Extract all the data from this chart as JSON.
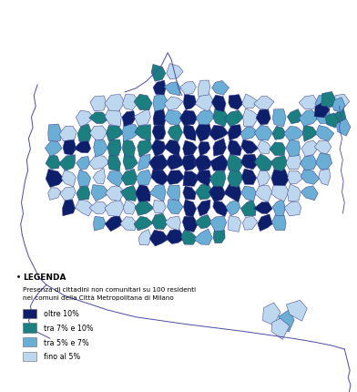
{
  "legend_title": "LEGENDA",
  "legend_subtitle": "Presenza di cittadini non comunitari su 100 residenti\nnei comuni della Città Metropolitana di Milano",
  "legend_items": [
    {
      "label": "oltre 10%",
      "color": "#0d1f6b"
    },
    {
      "label": "tra 7% e 10%",
      "color": "#1b7f7f"
    },
    {
      "label": "tra 5% e 7%",
      "color": "#6aaed6"
    },
    {
      "label": "fino al 5%",
      "color": "#bdd7ee"
    }
  ],
  "background_color": "#ffffff",
  "map_edge_color": "#3a3a8a",
  "map_edge_width": 0.35,
  "border_color": "#4a4aaa",
  "figsize": [
    3.92,
    4.31
  ],
  "dpi": 100
}
